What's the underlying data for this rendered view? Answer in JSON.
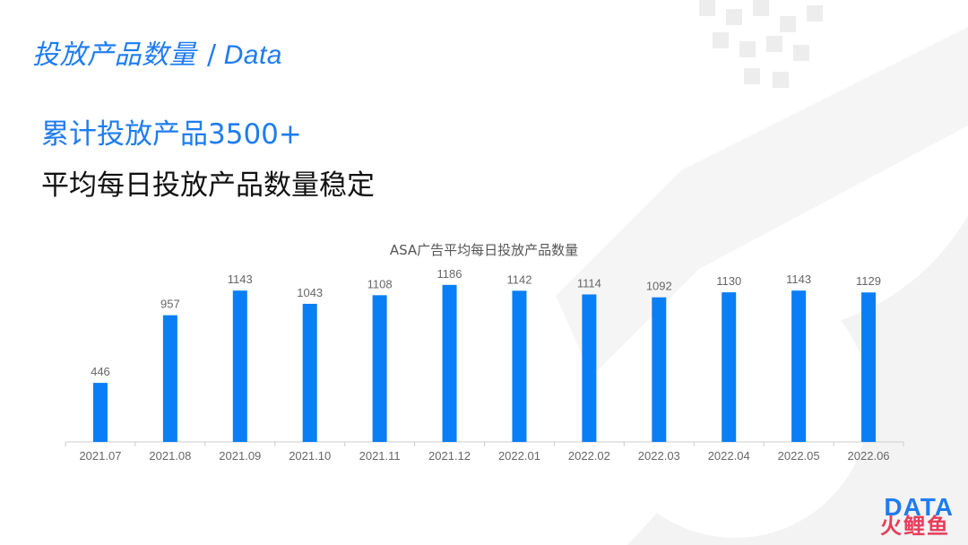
{
  "header": {
    "title_cn": "投放产品数量",
    "separator": "/",
    "title_en": "Data"
  },
  "headline": "累计投放产品3500+",
  "subheadline": "平均每日投放产品数量稳定",
  "brand": {
    "top": "DATA",
    "bottom": "火鲤鱼"
  },
  "colors": {
    "accent": "#1e7cf1",
    "bar": "#0a7ef5",
    "label": "#666666",
    "axis": "#cccccc",
    "decor": "#f2f2f2"
  },
  "chart_data": {
    "type": "bar",
    "title": "ASA广告平均每日投放产品数量",
    "categories": [
      "2021.07",
      "2021.08",
      "2021.09",
      "2021.10",
      "2021.11",
      "2021.12",
      "2022.01",
      "2022.02",
      "2022.03",
      "2022.04",
      "2022.05",
      "2022.06"
    ],
    "values": [
      446,
      957,
      1143,
      1043,
      1108,
      1186,
      1142,
      1114,
      1092,
      1130,
      1143,
      1129
    ],
    "data_labels": [
      "446",
      "957",
      "1143",
      "1043",
      "1108",
      "1186",
      "1142",
      "1114",
      "1092",
      "1130",
      "1143",
      "1129"
    ],
    "xlabel": "",
    "ylabel": "",
    "ylim": [
      0,
      1300
    ],
    "grid": false,
    "legend": "none"
  }
}
